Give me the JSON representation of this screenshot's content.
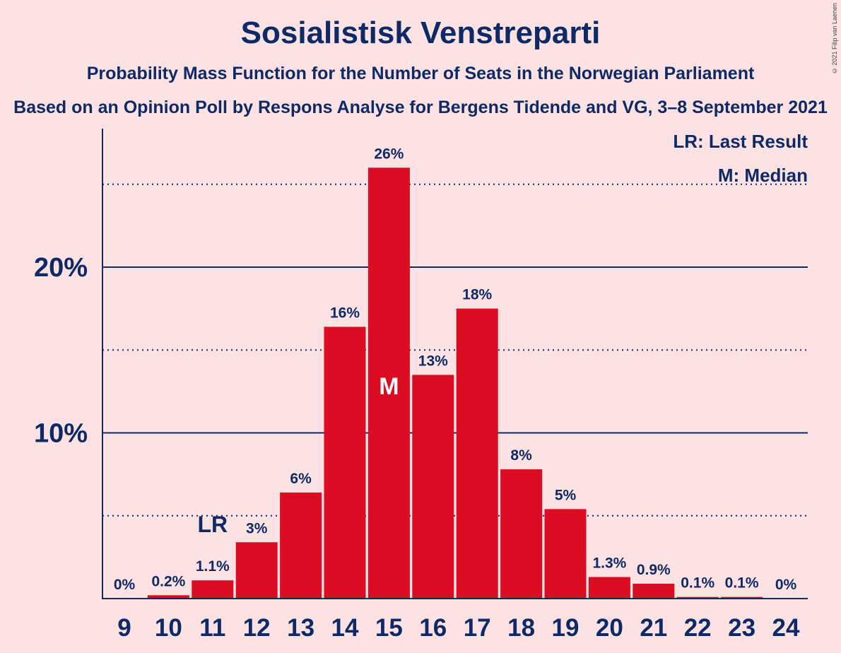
{
  "title": "Sosialistisk Venstreparti",
  "subtitle": "Probability Mass Function for the Number of Seats in the Norwegian Parliament",
  "subtitle2": "Based on an Opinion Poll by Respons Analyse for Bergens Tidende and VG, 3–8 September 2021",
  "credit": "© 2021 Filip van Laenen",
  "legend": {
    "lr": "LR: Last Result",
    "m": "M: Median"
  },
  "markers": {
    "last_result": {
      "seats": 11,
      "label": "LR"
    },
    "median": {
      "seats": 15,
      "label": "M"
    }
  },
  "colors": {
    "bar": "#DC0D22",
    "axis": "#0D2A66",
    "background": "#FDE2E4"
  },
  "chart_data": {
    "type": "bar",
    "categories": [
      "9",
      "10",
      "11",
      "12",
      "13",
      "14",
      "15",
      "16",
      "17",
      "18",
      "19",
      "20",
      "21",
      "22",
      "23",
      "24"
    ],
    "values": [
      0,
      0.2,
      1.1,
      3.4,
      6.4,
      16.4,
      26.0,
      13.5,
      17.5,
      7.8,
      5.4,
      1.3,
      0.9,
      0.1,
      0.1,
      0
    ],
    "labels": [
      "0%",
      "0.2%",
      "1.1%",
      "3%",
      "6%",
      "16%",
      "26%",
      "13%",
      "18%",
      "8%",
      "5%",
      "1.3%",
      "0.9%",
      "0.1%",
      "0.1%",
      "0%"
    ],
    "ylim": [
      0,
      28
    ],
    "yticks": [
      10,
      20
    ],
    "ytick_labels": [
      "10%",
      "20%"
    ],
    "minor_gridlines": [
      5,
      15,
      25
    ],
    "grid": true,
    "legend_position": "top-right"
  }
}
